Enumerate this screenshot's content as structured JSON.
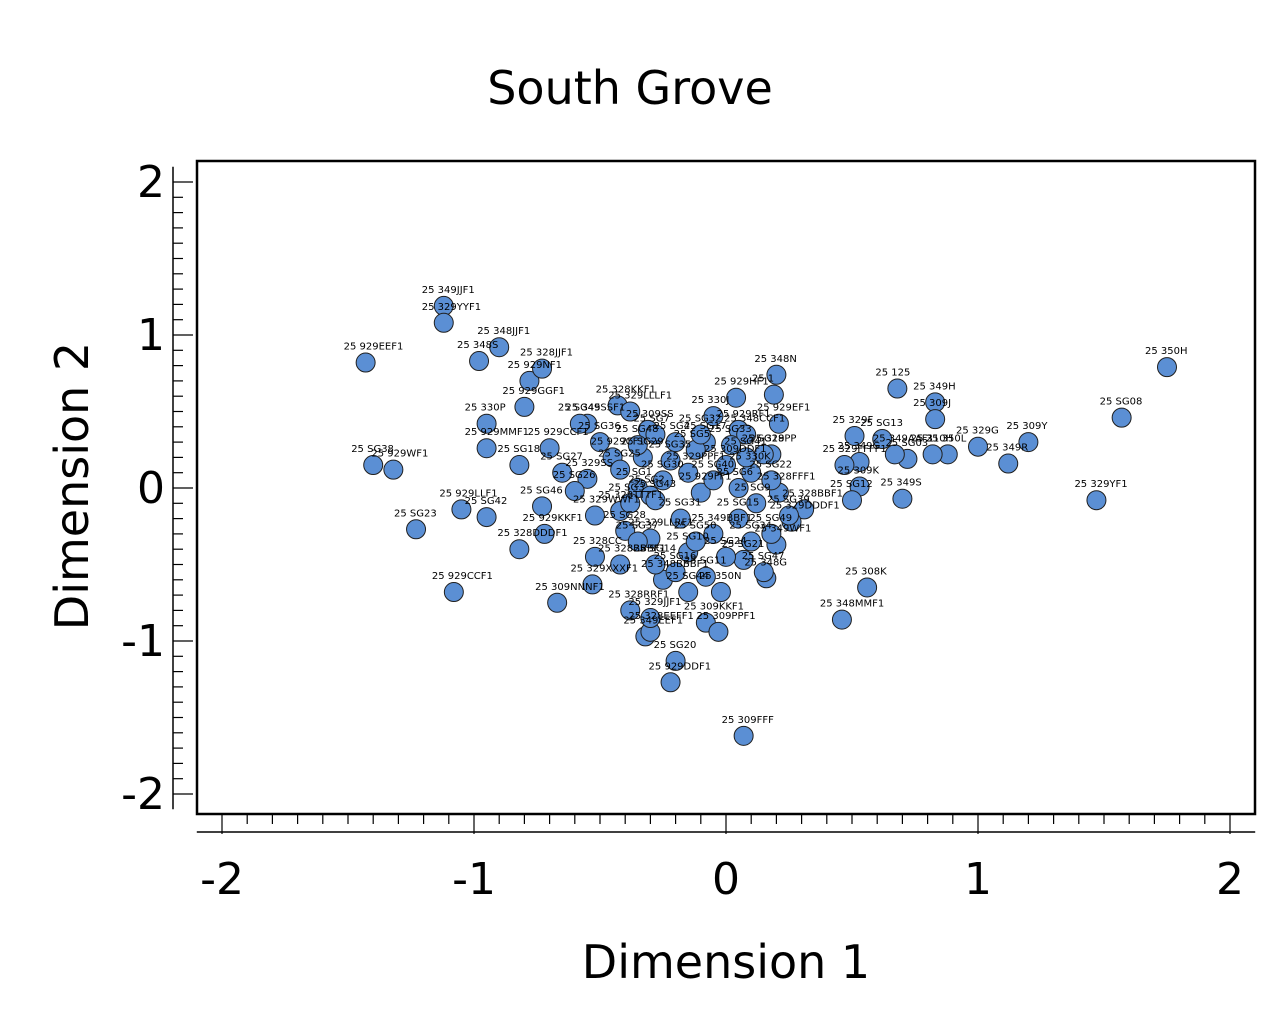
{
  "chart_data": {
    "type": "scatter",
    "title": "South Grove",
    "xlabel": "Dimension 1",
    "ylabel": "Dimension 2",
    "xlim": [
      -2.1,
      2.1
    ],
    "ylim": [
      -2.1,
      2.1
    ],
    "x_ticks": [
      -2,
      -1,
      0,
      1,
      2
    ],
    "y_ticks": [
      -2,
      -1,
      0,
      1,
      2
    ],
    "x_tick_labels": [
      "-2",
      "-1",
      "0",
      "1",
      "2"
    ],
    "y_tick_labels": [
      "-2",
      "-1",
      "0",
      "1",
      "2"
    ],
    "grid": false,
    "legend": "none",
    "marker_color": "#5b8fd4",
    "points": [
      {
        "x": 1.75,
        "y": 0.79,
        "label": "25 350H"
      },
      {
        "x": 1.57,
        "y": 0.46,
        "label": "25 SG08"
      },
      {
        "x": 1.47,
        "y": -0.08,
        "label": "25 329YF1"
      },
      {
        "x": 1.2,
        "y": 0.3,
        "label": "25 309Y"
      },
      {
        "x": 1.12,
        "y": 0.16,
        "label": "25 349R"
      },
      {
        "x": 1.0,
        "y": 0.27,
        "label": "25 329G"
      },
      {
        "x": 0.88,
        "y": 0.22,
        "label": "25 350L"
      },
      {
        "x": 0.83,
        "y": 0.56,
        "label": "25 349H"
      },
      {
        "x": 0.83,
        "y": 0.45,
        "label": "25 309J"
      },
      {
        "x": 0.82,
        "y": 0.22,
        "label": "25 310H"
      },
      {
        "x": 0.68,
        "y": 0.65,
        "label": "25 125"
      },
      {
        "x": 0.7,
        "y": -0.07,
        "label": "25 349S"
      },
      {
        "x": 0.72,
        "y": 0.19,
        "label": "25 SG03"
      },
      {
        "x": 0.62,
        "y": 0.32,
        "label": "25 SG13"
      },
      {
        "x": 0.67,
        "y": 0.22,
        "label": "25 349AAF1"
      },
      {
        "x": 0.56,
        "y": -0.65,
        "label": "25 308K"
      },
      {
        "x": 0.53,
        "y": 0.01,
        "label": "25 309K"
      },
      {
        "x": 0.51,
        "y": 0.34,
        "label": "25 329F"
      },
      {
        "x": 0.53,
        "y": 0.17,
        "label": "25 349G"
      },
      {
        "x": 0.5,
        "y": -0.08,
        "label": "25 SG12"
      },
      {
        "x": 0.46,
        "y": -0.86,
        "label": "25 348MMF1"
      },
      {
        "x": 0.47,
        "y": 0.15,
        "label": "25 329FFFF1"
      },
      {
        "x": 0.31,
        "y": -0.14,
        "label": "25 328BBF1"
      },
      {
        "x": 0.26,
        "y": -0.22,
        "label": "25 329DDDF1"
      },
      {
        "x": 0.2,
        "y": 0.74,
        "label": "25 348N"
      },
      {
        "x": 0.19,
        "y": 0.61,
        "label": "25 1"
      },
      {
        "x": 0.21,
        "y": 0.42,
        "label": "25 929EF1"
      },
      {
        "x": 0.18,
        "y": 0.22,
        "label": "25 328PP"
      },
      {
        "x": 0.21,
        "y": -0.03,
        "label": "25 328FFF1"
      },
      {
        "x": 0.2,
        "y": -0.37,
        "label": "25 349WF1"
      },
      {
        "x": 0.16,
        "y": -0.59,
        "label": "25 348G"
      },
      {
        "x": 0.07,
        "y": -1.62,
        "label": "25 309FFF"
      },
      {
        "x": 0.04,
        "y": 0.59,
        "label": "25 929HF1"
      },
      {
        "x": -0.05,
        "y": 0.47,
        "label": "25 330J"
      },
      {
        "x": 0.05,
        "y": 0.38,
        "label": "25 929RF1"
      },
      {
        "x": 0.08,
        "y": 0.35,
        "label": "25 348CCF1"
      },
      {
        "x": 0.05,
        "y": -0.2,
        "label": "25 SG15"
      },
      {
        "x": 0.07,
        "y": -0.47,
        "label": "25 SG21"
      },
      {
        "x": -0.02,
        "y": -0.68,
        "label": "25 350N"
      },
      {
        "x": -0.08,
        "y": -0.88,
        "label": "25 309KKF1"
      },
      {
        "x": -0.03,
        "y": -0.94,
        "label": "25 309PPF1"
      },
      {
        "x": -0.2,
        "y": -1.13,
        "label": "25 SG20"
      },
      {
        "x": -0.22,
        "y": -1.27,
        "label": "25 929DDF1"
      },
      {
        "x": -0.32,
        "y": -0.97,
        "label": "25 349EEF1"
      },
      {
        "x": -0.3,
        "y": -0.94,
        "label": "25 328EEFF1"
      },
      {
        "x": -0.3,
        "y": -0.85,
        "label": "25 329JJF1"
      },
      {
        "x": -0.38,
        "y": -0.8,
        "label": "25 328RRF1"
      },
      {
        "x": -0.25,
        "y": -0.6,
        "label": "25 348BBBF1"
      },
      {
        "x": -0.42,
        "y": -0.5,
        "label": "25 328BBBF1"
      },
      {
        "x": -0.53,
        "y": -0.63,
        "label": "25 329XXXF1"
      },
      {
        "x": -0.52,
        "y": -0.45,
        "label": "25 328CC"
      },
      {
        "x": -0.67,
        "y": -0.75,
        "label": "25 309NNNF1"
      },
      {
        "x": -0.72,
        "y": -0.3,
        "label": "25 929KKF1"
      },
      {
        "x": -0.82,
        "y": -0.4,
        "label": "25 328DDDF1"
      },
      {
        "x": -1.08,
        "y": -0.68,
        "label": "25 929CCF1"
      },
      {
        "x": -1.23,
        "y": -0.27,
        "label": "25 SG23"
      },
      {
        "x": -0.95,
        "y": -0.19,
        "label": "25 SG42"
      },
      {
        "x": -1.05,
        "y": -0.14,
        "label": "25 929LLF1"
      },
      {
        "x": -0.73,
        "y": -0.12,
        "label": "25 SG46"
      },
      {
        "x": -1.4,
        "y": 0.15,
        "label": "25 SG38"
      },
      {
        "x": -1.32,
        "y": 0.12,
        "label": "25 929WF1"
      },
      {
        "x": -0.95,
        "y": 0.26,
        "label": "25 929MMF1"
      },
      {
        "x": -0.82,
        "y": 0.15,
        "label": "25 SG18"
      },
      {
        "x": -0.95,
        "y": 0.42,
        "label": "25 330P"
      },
      {
        "x": -0.8,
        "y": 0.53,
        "label": "25 929GGF1"
      },
      {
        "x": -0.78,
        "y": 0.7,
        "label": "25 929NF1"
      },
      {
        "x": -0.73,
        "y": 0.78,
        "label": "25 328JJF1"
      },
      {
        "x": -0.9,
        "y": 0.92,
        "label": "25 348JJF1"
      },
      {
        "x": -0.98,
        "y": 0.83,
        "label": "25 348S"
      },
      {
        "x": -1.43,
        "y": 0.82,
        "label": "25 929EEF1"
      },
      {
        "x": -1.12,
        "y": 1.19,
        "label": "25 349JJF1"
      },
      {
        "x": -1.12,
        "y": 1.08,
        "label": "25 329YYF1"
      },
      {
        "x": -0.43,
        "y": 0.54,
        "label": "25 328KKF1"
      },
      {
        "x": -0.38,
        "y": 0.5,
        "label": "25 329LLLF1"
      },
      {
        "x": -0.55,
        "y": 0.42,
        "label": "25 349SSF1"
      },
      {
        "x": -0.7,
        "y": 0.26,
        "label": "25 929CCF1"
      },
      {
        "x": -0.31,
        "y": 0.38,
        "label": "25 309SS"
      },
      {
        "x": -0.45,
        "y": 0.2,
        "label": "25 929CF1"
      },
      {
        "x": -0.55,
        "y": 0.06,
        "label": "25 329SS"
      },
      {
        "x": -0.52,
        "y": -0.18,
        "label": "25 329WWF1"
      },
      {
        "x": -0.42,
        "y": -0.15,
        "label": "25 328TTTF1"
      },
      {
        "x": -0.3,
        "y": -0.33,
        "label": "25 329LLRF1"
      },
      {
        "x": -0.15,
        "y": 0.1,
        "label": "25 329PPF1"
      },
      {
        "x": -0.1,
        "y": -0.03,
        "label": "25 929FF1"
      },
      {
        "x": -0.08,
        "y": 0.3,
        "label": "25 SG17"
      },
      {
        "x": 0.0,
        "y": 0.15,
        "label": "25 309DDF1"
      },
      {
        "x": 0.1,
        "y": 0.1,
        "label": "25 330K"
      },
      {
        "x": -0.05,
        "y": -0.3,
        "label": "25 349BBF1"
      },
      {
        "x": 0.0,
        "y": -0.45,
        "label": "25 SG24"
      },
      {
        "x": -0.2,
        "y": -0.55,
        "label": "25 SG16"
      },
      {
        "x": -0.28,
        "y": 0.35,
        "label": "25 SG7"
      },
      {
        "x": -0.25,
        "y": 0.05,
        "label": "25 SG30"
      },
      {
        "x": -0.35,
        "y": 0.0,
        "label": "25 SG1"
      },
      {
        "x": -0.3,
        "y": -0.05,
        "label": "25 SG2"
      },
      {
        "x": -0.38,
        "y": -0.1,
        "label": "25 SG3"
      },
      {
        "x": -0.2,
        "y": 0.3,
        "label": "25 SG4"
      },
      {
        "x": -0.12,
        "y": 0.25,
        "label": "25 SG5"
      },
      {
        "x": 0.05,
        "y": 0.0,
        "label": "25 SG6"
      },
      {
        "x": 0.12,
        "y": -0.1,
        "label": "25 SG9"
      },
      {
        "x": -0.15,
        "y": -0.42,
        "label": "25 SG10"
      },
      {
        "x": -0.08,
        "y": -0.58,
        "label": "25 SG11"
      },
      {
        "x": -0.28,
        "y": -0.5,
        "label": "25 SG14"
      },
      {
        "x": 0.15,
        "y": 0.22,
        "label": "25 SG19"
      },
      {
        "x": 0.18,
        "y": 0.05,
        "label": "25 SG22"
      },
      {
        "x": -0.42,
        "y": 0.12,
        "label": "25 SG25"
      },
      {
        "x": -0.6,
        "y": -0.02,
        "label": "25 SG26"
      },
      {
        "x": -0.65,
        "y": 0.1,
        "label": "25 SG27"
      },
      {
        "x": -0.4,
        "y": -0.28,
        "label": "25 SG28"
      },
      {
        "x": -0.33,
        "y": 0.2,
        "label": "25 SG29"
      },
      {
        "x": -0.18,
        "y": -0.2,
        "label": "25 SG31"
      },
      {
        "x": -0.1,
        "y": 0.35,
        "label": "25 SG32"
      },
      {
        "x": 0.02,
        "y": 0.28,
        "label": "25 SG33"
      },
      {
        "x": 0.1,
        "y": -0.35,
        "label": "25 SG34"
      },
      {
        "x": -0.22,
        "y": 0.18,
        "label": "25 SG35"
      },
      {
        "x": -0.5,
        "y": 0.3,
        "label": "25 SG36"
      },
      {
        "x": -0.35,
        "y": -0.35,
        "label": "25 SG37"
      },
      {
        "x": 0.25,
        "y": -0.18,
        "label": "25 SG39"
      },
      {
        "x": -0.05,
        "y": 0.05,
        "label": "25 SG40"
      },
      {
        "x": 0.08,
        "y": 0.2,
        "label": "25 SG41"
      },
      {
        "x": -0.28,
        "y": -0.08,
        "label": "25 SG43"
      },
      {
        "x": -0.15,
        "y": -0.68,
        "label": "25 SG44"
      },
      {
        "x": -0.58,
        "y": 0.42,
        "label": "25 SG45"
      },
      {
        "x": 0.15,
        "y": -0.55,
        "label": "25 SG47"
      },
      {
        "x": -0.35,
        "y": 0.28,
        "label": "25 SG48"
      },
      {
        "x": 0.18,
        "y": -0.3,
        "label": "25 SG49"
      },
      {
        "x": -0.12,
        "y": -0.35,
        "label": "25 SG50"
      }
    ]
  }
}
